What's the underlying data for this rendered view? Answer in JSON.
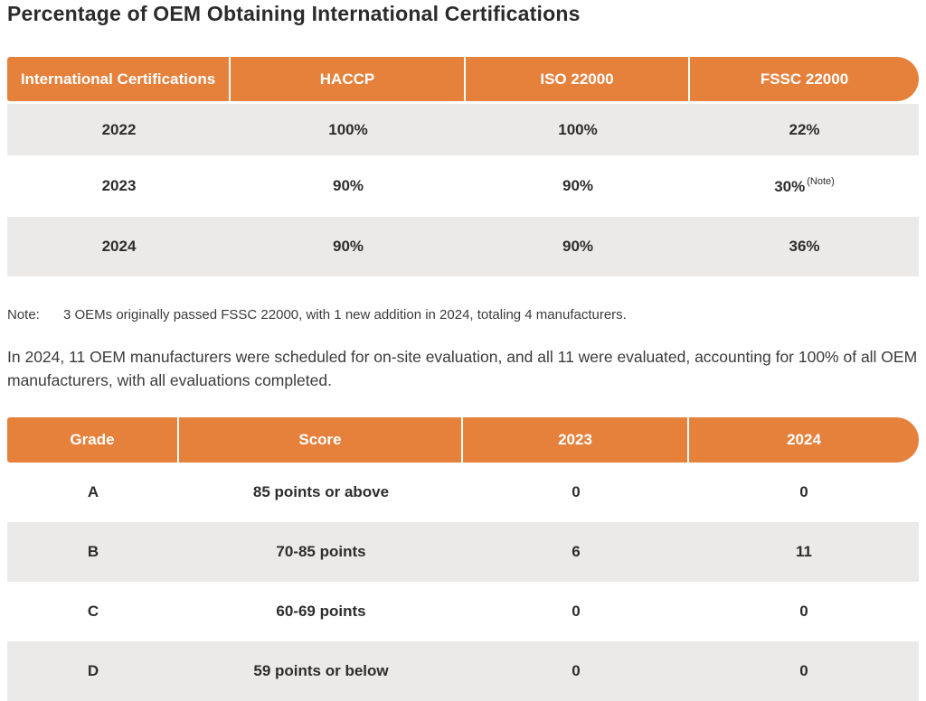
{
  "page": {
    "title": "Percentage of OEM Obtaining International Certifications"
  },
  "colors": {
    "accent_orange": "#e6813c",
    "row_gray": "#eceae9",
    "text_dark": "#2d2d2d"
  },
  "cert_table": {
    "headers": [
      "International Certifications",
      "HACCP",
      "ISO 22000",
      "FSSC 22000"
    ],
    "rows": [
      {
        "year": "2022",
        "haccp": "100%",
        "iso": "100%",
        "fssc": "22%",
        "fssc_sup": ""
      },
      {
        "year": "2023",
        "haccp": "90%",
        "iso": "90%",
        "fssc": "30%",
        "fssc_sup": "(Note)"
      },
      {
        "year": "2024",
        "haccp": "90%",
        "iso": "90%",
        "fssc": "36%",
        "fssc_sup": ""
      }
    ]
  },
  "note": {
    "label": "Note:",
    "text": "3 OEMs originally passed FSSC 22000, with 1 new addition in 2024, totaling 4 manufacturers."
  },
  "paragraph": "In 2024, 11 OEM manufacturers were scheduled for on-site evaluation, and all 11 were evaluated, accounting for 100% of all OEM manufacturers, with all evaluations completed.",
  "grade_table": {
    "headers": [
      "Grade",
      "Score",
      "2023",
      "2024"
    ],
    "rows": [
      {
        "grade": "A",
        "score": "85 points or above",
        "y2023": "0",
        "y2024": "0"
      },
      {
        "grade": "B",
        "score": "70-85 points",
        "y2023": "6",
        "y2024": "11"
      },
      {
        "grade": "C",
        "score": "60-69 points",
        "y2023": "0",
        "y2024": "0"
      },
      {
        "grade": "D",
        "score": "59 points or below",
        "y2023": "0",
        "y2024": "0"
      }
    ]
  }
}
